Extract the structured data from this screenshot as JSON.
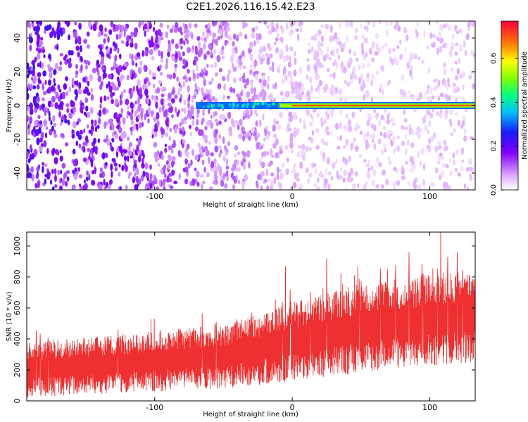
{
  "title": "C2E1.2026.116.15.42.E23",
  "chart_data": [
    {
      "type": "heatmap",
      "name": "spectrogram",
      "xlabel": "Height of straight line (km)",
      "ylabel": "Frequency (Hz)",
      "xlim": [
        -193,
        133
      ],
      "ylim": [
        -50,
        50
      ],
      "xticks": [
        -100,
        0,
        100
      ],
      "yticks": [
        -40,
        -20,
        0,
        20,
        40
      ],
      "colorbar": {
        "label": "Normalized spectral amplitude",
        "range": [
          0.0,
          0.77
        ],
        "ticks": [
          0.0,
          0.2,
          0.4,
          0.6
        ]
      },
      "line_feature": {
        "frequency_hz": 0,
        "starts_at_km": -70,
        "peak_amplitude": 0.7
      },
      "noise_amplitude_left": 0.2,
      "noise_amplitude_right": 0.05
    },
    {
      "type": "line",
      "name": "snr",
      "xlabel": "Height of straight line (km)",
      "ylabel": "SNR (10 * v/v)",
      "xlim": [
        -193,
        133
      ],
      "ylim": [
        0,
        1090
      ],
      "xticks": [
        -100,
        0,
        100
      ],
      "yticks": [
        0,
        200,
        400,
        600,
        800,
        1000
      ],
      "series": [
        {
          "name": "SNR",
          "color": "#ef3030",
          "trend_x": [
            -193,
            -150,
            -100,
            -50,
            0,
            50,
            100,
            133
          ],
          "trend_low": [
            20,
            40,
            60,
            80,
            120,
            180,
            220,
            250
          ],
          "trend_high": [
            380,
            410,
            450,
            500,
            640,
            760,
            820,
            850
          ],
          "peaks": [
            {
              "x": -5,
              "y": 870
            },
            {
              "x": 25,
              "y": 920
            },
            {
              "x": 85,
              "y": 960
            },
            {
              "x": 108,
              "y": 1090
            },
            {
              "x": 120,
              "y": 960
            }
          ]
        }
      ]
    }
  ]
}
